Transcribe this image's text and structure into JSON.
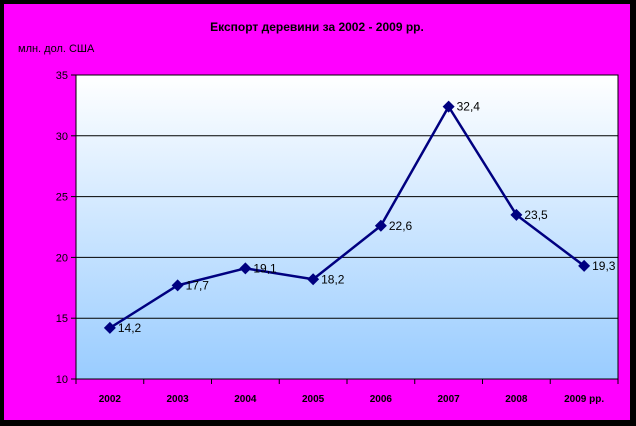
{
  "chart_data": {
    "type": "line",
    "title": "Експорт деревини за 2002 - 2009 рр.",
    "ylabel": "млн. дол. США",
    "xlabel": "",
    "categories": [
      "2002",
      "2003",
      "2004",
      "2005",
      "2006",
      "2007",
      "2008",
      "2009 рр."
    ],
    "series": [
      {
        "values": [
          14.2,
          17.7,
          19.1,
          18.2,
          22.6,
          32.4,
          23.5,
          19.3
        ]
      }
    ],
    "data_labels": [
      "14,2",
      "17,7",
      "19,1",
      "18,2",
      "22,6",
      "32,4",
      "23,5",
      "19,3"
    ],
    "y_ticks": [
      "10",
      "15",
      "20",
      "25",
      "30",
      "35"
    ],
    "ylim": [
      10,
      35
    ],
    "grid": true,
    "legend": "none"
  },
  "colors": {
    "frame_background": "#ff00ff",
    "border": "#000000",
    "plot_gradient_top": "#ffffff",
    "plot_gradient_bottom": "#99ccff",
    "series_line": "#000080",
    "gridline": "#000000"
  }
}
